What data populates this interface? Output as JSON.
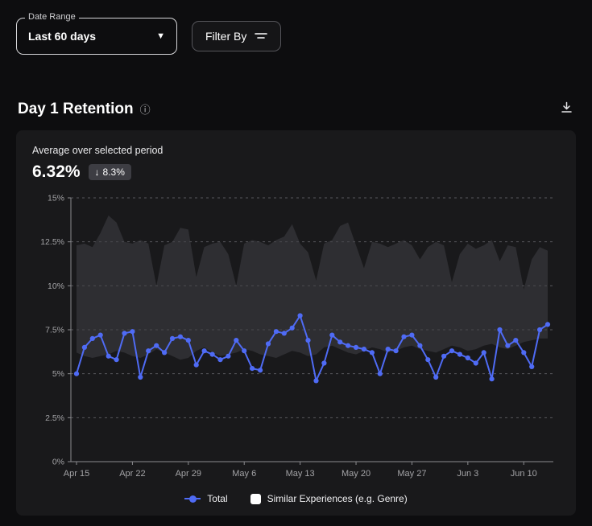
{
  "controls": {
    "date_range_label": "Date Range",
    "date_range_value": "Last 60 days",
    "filter_button_label": "Filter By"
  },
  "section": {
    "title": "Day 1 Retention"
  },
  "summary": {
    "caption": "Average over selected period",
    "value": "6.32%",
    "delta_arrow": "↓",
    "delta": "8.3%",
    "delta_direction": "down"
  },
  "colors": {
    "accent_blue": "#4f6bf5",
    "band_gray": "#3f3f45",
    "card_bg": "#19191b",
    "page_bg": "#0d0d0f",
    "badge_bg": "#3d3d43"
  },
  "chart_data": {
    "type": "line",
    "title": "Day 1 Retention",
    "ylim": [
      0,
      15
    ],
    "grid": "dashed-horizontal",
    "y_tick_values": [
      0,
      2.5,
      5,
      7.5,
      10,
      12.5,
      15
    ],
    "y_tick_labels": [
      "0%",
      "2.5%",
      "5%",
      "7.5%",
      "10%",
      "12.5%",
      "15%"
    ],
    "x_tick_indices": [
      0,
      7,
      14,
      21,
      28,
      35,
      42,
      49,
      56
    ],
    "x_tick_labels": [
      "Apr 15",
      "Apr 22",
      "Apr 29",
      "May 6",
      "May 13",
      "May 20",
      "May 27",
      "Jun 3",
      "Jun 10"
    ],
    "series": [
      {
        "name": "Total",
        "kind": "line",
        "color": "#4f6bf5",
        "values": [
          5.0,
          6.5,
          7.0,
          7.2,
          6.0,
          5.8,
          7.3,
          7.4,
          4.8,
          6.3,
          6.6,
          6.2,
          7.0,
          7.1,
          6.9,
          5.5,
          6.3,
          6.1,
          5.8,
          6.0,
          6.9,
          6.3,
          5.3,
          5.2,
          6.7,
          7.4,
          7.3,
          7.6,
          8.3,
          6.9,
          4.6,
          5.6,
          7.2,
          6.8,
          6.6,
          6.5,
          6.4,
          6.2,
          5.0,
          6.4,
          6.3,
          7.1,
          7.2,
          6.6,
          5.8,
          4.8,
          6.0,
          6.3,
          6.1,
          5.9,
          5.6,
          6.2,
          4.7,
          7.5,
          6.6,
          6.9,
          6.2,
          5.4,
          7.5,
          7.8
        ]
      },
      {
        "name": "Similar Experiences (e.g. Genre)",
        "kind": "band",
        "color": "#3f3f45",
        "upper": [
          12.3,
          12.4,
          12.2,
          13.0,
          14.0,
          13.6,
          12.5,
          12.4,
          12.6,
          12.4,
          10.0,
          12.3,
          12.5,
          13.3,
          13.2,
          10.5,
          12.2,
          12.4,
          12.5,
          11.8,
          10.0,
          12.4,
          12.6,
          12.5,
          12.3,
          12.6,
          12.8,
          13.5,
          12.4,
          11.9,
          10.3,
          12.4,
          12.6,
          13.4,
          13.6,
          12.3,
          11.0,
          12.5,
          12.4,
          12.2,
          12.4,
          12.6,
          12.3,
          11.5,
          12.2,
          12.5,
          12.3,
          10.2,
          11.8,
          12.4,
          12.1,
          12.3,
          12.6,
          11.4,
          12.3,
          12.2,
          9.8,
          11.5,
          12.2,
          12.0
        ],
        "lower": [
          6.2,
          6.0,
          5.9,
          6.0,
          6.1,
          6.3,
          6.2,
          6.0,
          5.9,
          6.1,
          6.4,
          6.2,
          6.0,
          5.8,
          5.9,
          6.3,
          6.5,
          6.2,
          6.0,
          6.1,
          6.2,
          6.4,
          6.3,
          6.1,
          6.0,
          5.9,
          6.1,
          6.3,
          6.2,
          6.0,
          6.1,
          6.5,
          6.6,
          6.4,
          6.2,
          6.1,
          6.3,
          6.5,
          6.4,
          6.2,
          6.3,
          6.5,
          6.6,
          6.4,
          6.3,
          6.2,
          6.4,
          6.6,
          6.5,
          6.3,
          6.4,
          6.6,
          6.7,
          6.5,
          6.4,
          6.6,
          6.8,
          6.9,
          7.0,
          7.0
        ]
      }
    ],
    "legend": [
      {
        "label": "Total",
        "swatch": "dot",
        "color": "#4f6bf5"
      },
      {
        "label": "Similar Experiences (e.g. Genre)",
        "swatch": "square",
        "color": "#ffffff"
      }
    ],
    "legend_position": "bottom-center"
  }
}
